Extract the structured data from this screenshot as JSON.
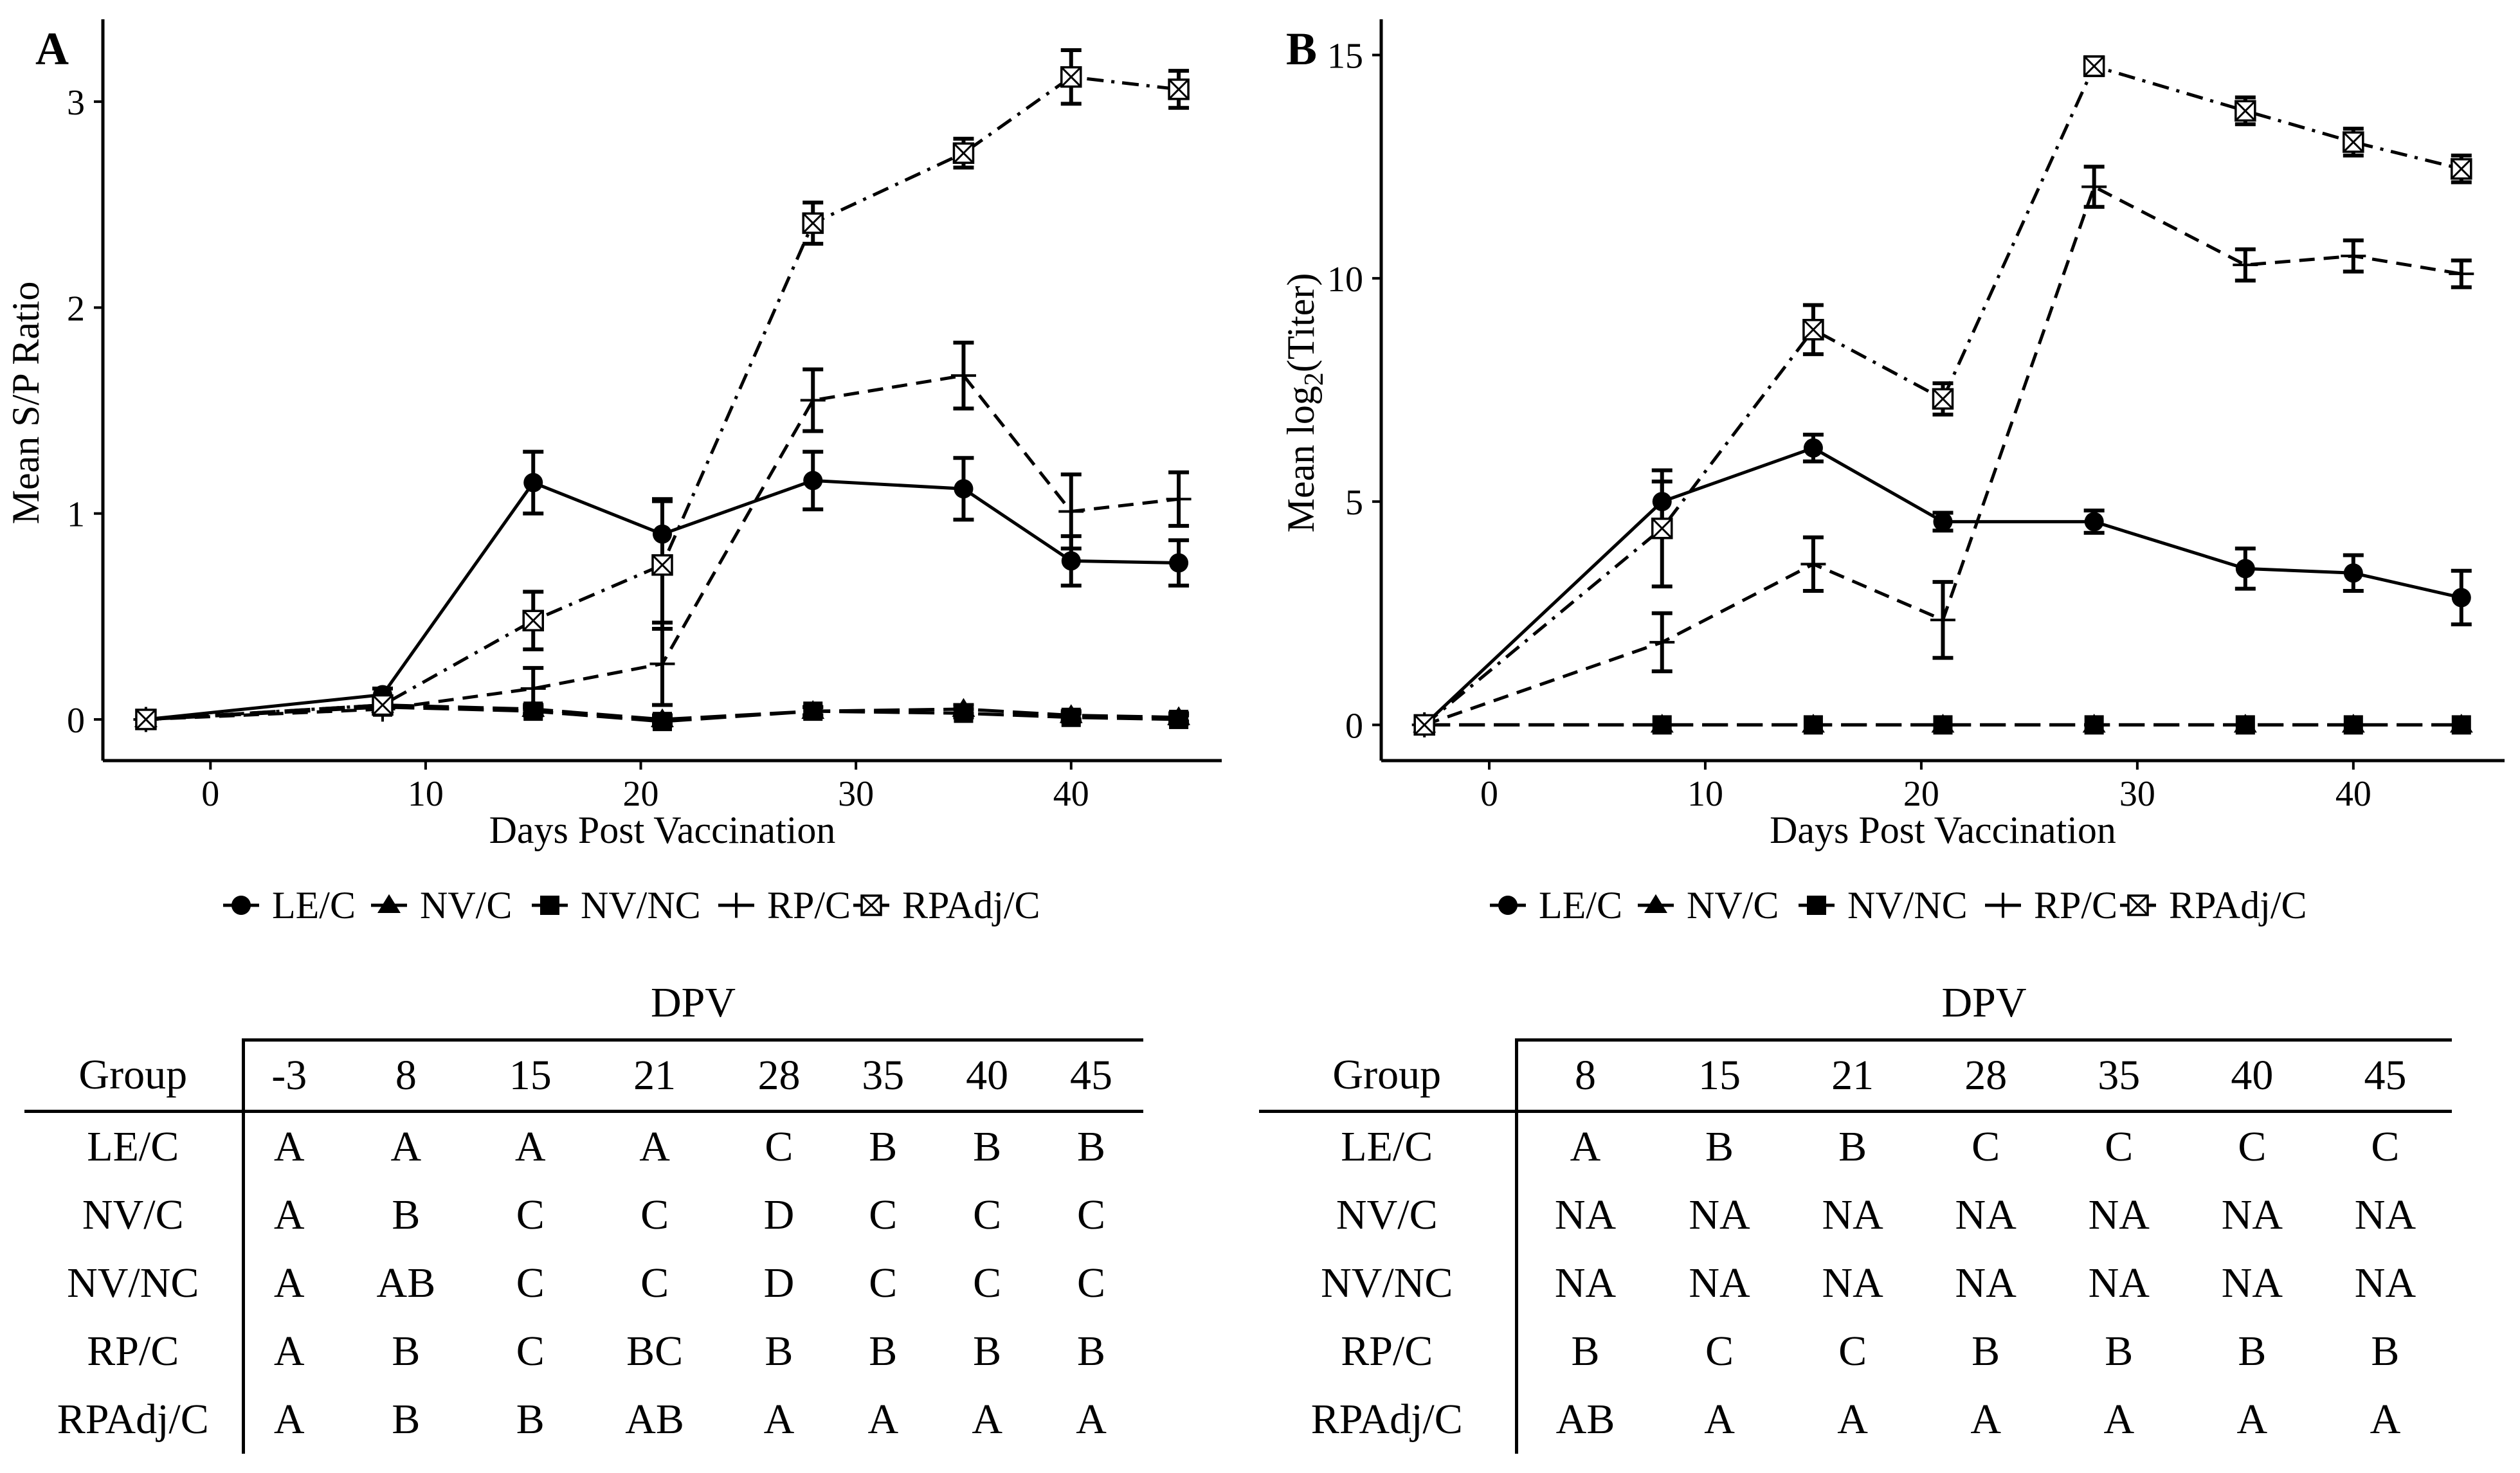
{
  "chart_data": [
    {
      "panel": "A",
      "type": "line",
      "xlabel": "Days Post Vaccination",
      "ylabel": "Mean S/P Ratio",
      "xlim": [
        -5,
        47
      ],
      "ylim": [
        -0.2,
        3.4
      ],
      "xticks": [
        0,
        10,
        20,
        30,
        40
      ],
      "yticks": [
        0,
        1,
        2,
        3
      ],
      "legend_position": "bottom",
      "series": [
        {
          "name": "LE/C",
          "marker": "circle",
          "dash": "solid",
          "x": [
            -3,
            8,
            15,
            21,
            28,
            35,
            40,
            45
          ],
          "y": [
            0.0,
            0.12,
            1.15,
            0.9,
            1.16,
            1.12,
            0.77,
            0.76
          ],
          "err": [
            0.03,
            0.03,
            0.15,
            0.17,
            0.14,
            0.15,
            0.12,
            0.11
          ]
        },
        {
          "name": "NV/C",
          "marker": "triangle",
          "dash": "longdash",
          "x": [
            -3,
            8,
            15,
            21,
            28,
            35,
            40,
            45
          ],
          "y": [
            0.0,
            0.07,
            0.05,
            0.0,
            0.04,
            0.05,
            0.02,
            0.01
          ],
          "err": [
            0.02,
            0.02,
            0.02,
            0.02,
            0.02,
            0.02,
            0.02,
            0.02
          ]
        },
        {
          "name": "NV/NC",
          "marker": "square",
          "dash": "longdash",
          "x": [
            -3,
            8,
            15,
            21,
            28,
            35,
            40,
            45
          ],
          "y": [
            0.0,
            0.06,
            0.04,
            -0.01,
            0.04,
            0.03,
            0.01,
            0.0
          ],
          "err": [
            0.02,
            0.02,
            0.02,
            0.02,
            0.02,
            0.02,
            0.02,
            0.02
          ]
        },
        {
          "name": "RP/C",
          "marker": "plus",
          "dash": "dashed",
          "x": [
            -3,
            8,
            15,
            21,
            28,
            35,
            40,
            45
          ],
          "y": [
            0.0,
            0.05,
            0.15,
            0.27,
            1.55,
            1.67,
            1.01,
            1.07
          ],
          "err": [
            0.02,
            0.02,
            0.1,
            0.2,
            0.15,
            0.16,
            0.18,
            0.13
          ]
        },
        {
          "name": "RPAdj/C",
          "marker": "boxcross",
          "dash": "dashdot",
          "x": [
            -3,
            8,
            15,
            21,
            28,
            35,
            40,
            45
          ],
          "y": [
            0.0,
            0.07,
            0.48,
            0.75,
            2.41,
            2.75,
            3.12,
            3.06
          ],
          "err": [
            0.02,
            0.02,
            0.14,
            0.31,
            0.1,
            0.07,
            0.13,
            0.09
          ]
        }
      ]
    },
    {
      "panel": "B",
      "type": "line",
      "xlabel": "Days Post Vaccination",
      "ylabel": "Mean log",
      "ylabel_sub": "2",
      "ylabel_suffix": "(Titer)",
      "xlim": [
        -5,
        47
      ],
      "ylim": [
        -0.8,
        15.8
      ],
      "xticks": [
        0,
        10,
        20,
        30,
        40
      ],
      "yticks": [
        0,
        5,
        10,
        15
      ],
      "legend_position": "bottom",
      "series": [
        {
          "name": "LE/C",
          "marker": "circle",
          "dash": "solid",
          "x": [
            -3,
            8,
            15,
            21,
            28,
            35,
            40,
            45
          ],
          "y": [
            0,
            5.0,
            6.2,
            4.55,
            4.55,
            3.5,
            3.4,
            2.85
          ],
          "err": [
            0,
            0.45,
            0.3,
            0.2,
            0.25,
            0.45,
            0.4,
            0.6
          ]
        },
        {
          "name": "NV/C",
          "marker": "triangle",
          "dash": "longdash",
          "x": [
            -3,
            8,
            15,
            21,
            28,
            35,
            40,
            45
          ],
          "y": [
            0,
            0,
            0,
            0,
            0,
            0,
            0,
            0
          ],
          "err": [
            0,
            0,
            0,
            0,
            0,
            0,
            0,
            0
          ]
        },
        {
          "name": "NV/NC",
          "marker": "square",
          "dash": "longdash",
          "x": [
            -3,
            8,
            15,
            21,
            28,
            35,
            40,
            45
          ],
          "y": [
            0,
            0,
            0,
            0,
            0,
            0,
            0,
            0
          ],
          "err": [
            0,
            0,
            0,
            0,
            0,
            0,
            0,
            0
          ]
        },
        {
          "name": "RP/C",
          "marker": "plus",
          "dash": "dashed",
          "x": [
            -3,
            8,
            15,
            21,
            28,
            35,
            40,
            45
          ],
          "y": [
            0,
            1.85,
            3.6,
            2.35,
            12.05,
            10.3,
            10.5,
            10.1
          ],
          "err": [
            0,
            0.65,
            0.6,
            0.85,
            0.45,
            0.35,
            0.35,
            0.3
          ]
        },
        {
          "name": "RPAdj/C",
          "marker": "boxcross",
          "dash": "dashdot",
          "x": [
            -3,
            8,
            15,
            21,
            28,
            35,
            40,
            45
          ],
          "y": [
            0,
            4.4,
            8.85,
            7.3,
            14.75,
            13.75,
            13.05,
            12.45
          ],
          "err": [
            0,
            1.3,
            0.55,
            0.35,
            0.2,
            0.3,
            0.3,
            0.3
          ]
        }
      ]
    }
  ],
  "tables": [
    {
      "panel": "A",
      "spanner": "DPV",
      "row_header": "Group",
      "columns": [
        "-3",
        "8",
        "15",
        "21",
        "28",
        "35",
        "40",
        "45"
      ],
      "rows": [
        {
          "group": "LE/C",
          "values": [
            "A",
            "A",
            "A",
            "A",
            "C",
            "B",
            "B",
            "B"
          ]
        },
        {
          "group": "NV/C",
          "values": [
            "A",
            "B",
            "C",
            "C",
            "D",
            "C",
            "C",
            "C"
          ]
        },
        {
          "group": "NV/NC",
          "values": [
            "A",
            "AB",
            "C",
            "C",
            "D",
            "C",
            "C",
            "C"
          ]
        },
        {
          "group": "RP/C",
          "values": [
            "A",
            "B",
            "C",
            "BC",
            "B",
            "B",
            "B",
            "B"
          ]
        },
        {
          "group": "RPAdj/C",
          "values": [
            "A",
            "B",
            "B",
            "AB",
            "A",
            "A",
            "A",
            "A"
          ]
        }
      ]
    },
    {
      "panel": "B",
      "spanner": "DPV",
      "row_header": "Group",
      "columns": [
        "8",
        "15",
        "21",
        "28",
        "35",
        "40",
        "45"
      ],
      "rows": [
        {
          "group": "LE/C",
          "values": [
            "A",
            "B",
            "B",
            "C",
            "C",
            "C",
            "C"
          ]
        },
        {
          "group": "NV/C",
          "values": [
            "NA",
            "NA",
            "NA",
            "NA",
            "NA",
            "NA",
            "NA"
          ]
        },
        {
          "group": "NV/NC",
          "values": [
            "NA",
            "NA",
            "NA",
            "NA",
            "NA",
            "NA",
            "NA"
          ]
        },
        {
          "group": "RP/C",
          "values": [
            "B",
            "C",
            "C",
            "B",
            "B",
            "B",
            "B"
          ]
        },
        {
          "group": "RPAdj/C",
          "values": [
            "AB",
            "A",
            "A",
            "A",
            "A",
            "A",
            "A"
          ]
        }
      ]
    }
  ]
}
